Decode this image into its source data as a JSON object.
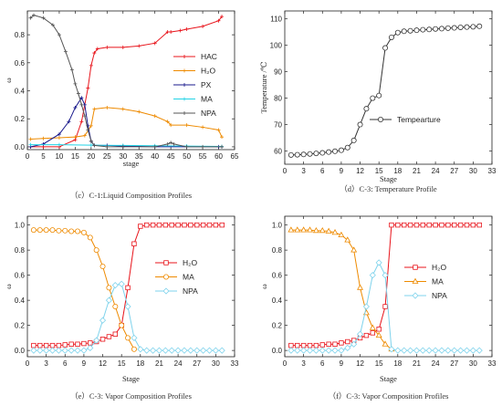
{
  "chart_data": [
    {
      "type": "line",
      "caption": "（c）C-1:Liquid Composition Profiles",
      "xlabel": "stage",
      "ylabel": "ω",
      "xlim": [
        0,
        65
      ],
      "ylim": [
        -0.02,
        0.97
      ],
      "xticks": [
        0,
        5,
        10,
        15,
        20,
        25,
        30,
        35,
        40,
        45,
        50,
        55,
        60,
        65
      ],
      "yticks": [
        0.0,
        0.2,
        0.4,
        0.6,
        0.8
      ],
      "ytick_labels": [
        "0.0",
        "0.2",
        "0.4",
        "0.6",
        "0.8"
      ],
      "legend_position": "right",
      "series": [
        {
          "name": "HAC",
          "color": "#e8141b",
          "marker": "plus",
          "x": [
            1,
            5,
            10,
            15,
            17,
            19,
            20,
            21,
            22,
            25,
            30,
            35,
            40,
            44,
            45,
            48,
            50,
            55,
            60,
            61
          ],
          "y": [
            0.0,
            0.0,
            0.0,
            0.05,
            0.18,
            0.42,
            0.58,
            0.67,
            0.7,
            0.71,
            0.71,
            0.72,
            0.74,
            0.82,
            0.82,
            0.83,
            0.84,
            0.86,
            0.9,
            0.93
          ]
        },
        {
          "name": "H₂O",
          "color": "#ee8a00",
          "marker": "plus",
          "x": [
            1,
            5,
            10,
            15,
            18,
            20,
            21,
            25,
            30,
            35,
            40,
            44,
            45,
            50,
            55,
            60,
            61
          ],
          "y": [
            0.055,
            0.06,
            0.065,
            0.07,
            0.08,
            0.15,
            0.27,
            0.28,
            0.27,
            0.25,
            0.22,
            0.18,
            0.155,
            0.155,
            0.14,
            0.12,
            0.07
          ]
        },
        {
          "name": "PX",
          "color": "#1a1a8c",
          "marker": "plus",
          "x": [
            1,
            5,
            10,
            13,
            15,
            17,
            18,
            19,
            20,
            21,
            25,
            30,
            40,
            50,
            60,
            61
          ],
          "y": [
            0.0,
            0.02,
            0.09,
            0.18,
            0.28,
            0.35,
            0.3,
            0.15,
            0.04,
            0.01,
            0.01,
            0.005,
            0.0,
            0.0,
            0.0,
            0.0
          ]
        },
        {
          "name": "MA",
          "color": "#22d3e6",
          "marker": "plus",
          "x": [
            1,
            10,
            20,
            30,
            40,
            50,
            61
          ],
          "y": [
            0.015,
            0.015,
            0.012,
            0.01,
            0.008,
            0.005,
            0.003
          ]
        },
        {
          "name": "NPA",
          "color": "#555555",
          "marker": "plus",
          "x": [
            1,
            2,
            5,
            8,
            10,
            12,
            14,
            15,
            16,
            17,
            18,
            19,
            20,
            21,
            25,
            30,
            40,
            44,
            45,
            46,
            50,
            55,
            61
          ],
          "y": [
            0.92,
            0.94,
            0.92,
            0.87,
            0.8,
            0.68,
            0.55,
            0.45,
            0.38,
            0.3,
            0.22,
            0.12,
            0.04,
            0.01,
            0.0,
            0.0,
            0.0,
            0.02,
            0.03,
            0.02,
            0.0,
            0.0,
            0.0
          ]
        }
      ]
    },
    {
      "type": "line",
      "caption": "（d）C-3: Temperature Profile",
      "xlabel": "Stage",
      "ylabel": "Temperature /℃",
      "xlim": [
        0,
        33
      ],
      "ylim": [
        55,
        113
      ],
      "xticks": [
        0,
        3,
        6,
        9,
        12,
        15,
        18,
        21,
        24,
        27,
        30,
        33
      ],
      "yticks": [
        60,
        70,
        80,
        90,
        100,
        110
      ],
      "ytick_labels": [
        "60",
        "70",
        "80",
        "90",
        "100",
        "110"
      ],
      "legend_position": "center-right",
      "series": [
        {
          "name": "Tempearture",
          "color": "#333333",
          "marker": "circle",
          "x": [
            1,
            2,
            3,
            4,
            5,
            6,
            7,
            8,
            9,
            10,
            11,
            12,
            13,
            14,
            15,
            16,
            17,
            18,
            19,
            20,
            21,
            22,
            23,
            24,
            25,
            26,
            27,
            28,
            29,
            30,
            31
          ],
          "y": [
            58.5,
            58.6,
            58.7,
            58.9,
            59.1,
            59.3,
            59.6,
            59.9,
            60.3,
            61.3,
            64,
            70,
            76,
            80,
            81,
            99,
            103,
            104.8,
            105.3,
            105.5,
            105.7,
            105.9,
            106,
            106.2,
            106.3,
            106.5,
            106.6,
            106.8,
            106.9,
            107,
            107.2
          ]
        }
      ]
    },
    {
      "type": "line",
      "caption": "（e）C-3: Vapor Composition Profiles",
      "xlabel": "Stage",
      "ylabel": "ω",
      "xlim": [
        0,
        33
      ],
      "ylim": [
        -0.05,
        1.07
      ],
      "xticks": [
        0,
        3,
        6,
        9,
        12,
        15,
        18,
        21,
        24,
        27,
        30,
        33
      ],
      "yticks": [
        0.0,
        0.2,
        0.4,
        0.6,
        0.8,
        1.0
      ],
      "ytick_labels": [
        "0.0",
        "0.2",
        "0.4",
        "0.6",
        "0.8",
        "1.0"
      ],
      "legend_position": "right",
      "series": [
        {
          "name": "H₂O",
          "color": "#e8141b",
          "marker": "square",
          "x": [
            1,
            2,
            3,
            4,
            5,
            6,
            7,
            8,
            9,
            10,
            11,
            12,
            13,
            14,
            15,
            16,
            17,
            18,
            19,
            20,
            21,
            22,
            23,
            24,
            25,
            26,
            27,
            28,
            29,
            30,
            31
          ],
          "y": [
            0.04,
            0.04,
            0.04,
            0.04,
            0.04,
            0.045,
            0.05,
            0.05,
            0.055,
            0.06,
            0.07,
            0.09,
            0.11,
            0.13,
            0.2,
            0.5,
            0.85,
            0.99,
            1.0,
            1.0,
            1.0,
            1.0,
            1.0,
            1.0,
            1.0,
            1.0,
            1.0,
            1.0,
            1.0,
            1.0,
            1.0
          ]
        },
        {
          "name": "MA",
          "color": "#ee8a00",
          "marker": "circle",
          "x": [
            1,
            2,
            3,
            4,
            5,
            6,
            7,
            8,
            9,
            10,
            11,
            12,
            13,
            14,
            15,
            16,
            17
          ],
          "y": [
            0.96,
            0.96,
            0.96,
            0.96,
            0.955,
            0.955,
            0.95,
            0.95,
            0.94,
            0.9,
            0.8,
            0.67,
            0.5,
            0.35,
            0.2,
            0.1,
            0.01
          ]
        },
        {
          "name": "NPA",
          "color": "#7fd3ec",
          "marker": "diamond",
          "x": [
            1,
            2,
            3,
            4,
            5,
            6,
            7,
            8,
            9,
            10,
            11,
            12,
            13,
            14,
            15,
            16,
            17,
            18,
            19,
            20,
            21,
            22,
            23,
            24,
            25,
            26,
            27,
            28,
            29,
            30,
            31
          ],
          "y": [
            0.0,
            0.0,
            0.0,
            0.0,
            0.0,
            0.0,
            0.0,
            0.0,
            0.0,
            0.02,
            0.08,
            0.24,
            0.4,
            0.52,
            0.53,
            0.35,
            0.1,
            0.01,
            0.0,
            0.0,
            0.0,
            0.0,
            0.0,
            0.0,
            0.0,
            0.0,
            0.0,
            0.0,
            0.0,
            0.0,
            0.0
          ]
        }
      ]
    },
    {
      "type": "line",
      "caption": "（f）C-3: Vapor Composition Profiles",
      "xlabel": "Stage",
      "ylabel": "ω",
      "xlim": [
        0,
        33
      ],
      "ylim": [
        -0.05,
        1.07
      ],
      "xticks": [
        0,
        3,
        6,
        9,
        12,
        15,
        18,
        21,
        24,
        27,
        30,
        33
      ],
      "yticks": [
        0.0,
        0.2,
        0.4,
        0.6,
        0.8,
        1.0
      ],
      "ytick_labels": [
        "0.0",
        "0.2",
        "0.4",
        "0.6",
        "0.8",
        "1.0"
      ],
      "legend_position": "right",
      "series": [
        {
          "name": "H₂O",
          "color": "#e8141b",
          "marker": "square",
          "x": [
            1,
            2,
            3,
            4,
            5,
            6,
            7,
            8,
            9,
            10,
            11,
            12,
            13,
            14,
            15,
            16,
            17,
            18,
            19,
            20,
            21,
            22,
            23,
            24,
            25,
            26,
            27,
            28,
            29,
            30,
            31
          ],
          "y": [
            0.04,
            0.04,
            0.04,
            0.04,
            0.04,
            0.045,
            0.05,
            0.05,
            0.06,
            0.07,
            0.08,
            0.1,
            0.12,
            0.14,
            0.17,
            0.35,
            1.0,
            1.0,
            1.0,
            1.0,
            1.0,
            1.0,
            1.0,
            1.0,
            1.0,
            1.0,
            1.0,
            1.0,
            1.0,
            1.0,
            1.0
          ]
        },
        {
          "name": "MA",
          "color": "#ee8a00",
          "marker": "triangle",
          "x": [
            1,
            2,
            3,
            4,
            5,
            6,
            7,
            8,
            9,
            10,
            11,
            12,
            13,
            14,
            15,
            16,
            17
          ],
          "y": [
            0.96,
            0.96,
            0.96,
            0.96,
            0.955,
            0.955,
            0.95,
            0.94,
            0.92,
            0.88,
            0.8,
            0.5,
            0.3,
            0.18,
            0.12,
            0.05,
            0.01
          ]
        },
        {
          "name": "NPA",
          "color": "#7fd3ec",
          "marker": "diamond",
          "x": [
            1,
            2,
            3,
            4,
            5,
            6,
            7,
            8,
            9,
            10,
            11,
            12,
            13,
            14,
            15,
            16,
            17,
            18,
            19,
            20,
            21,
            22,
            23,
            24,
            25,
            26,
            27,
            28,
            29,
            30,
            31
          ],
          "y": [
            0.0,
            0.0,
            0.0,
            0.0,
            0.0,
            0.0,
            0.0,
            0.0,
            0.0,
            0.02,
            0.05,
            0.13,
            0.35,
            0.6,
            0.7,
            0.6,
            0.01,
            0.0,
            0.0,
            0.0,
            0.0,
            0.0,
            0.0,
            0.0,
            0.0,
            0.0,
            0.0,
            0.0,
            0.0,
            0.0,
            0.0
          ]
        }
      ]
    }
  ]
}
